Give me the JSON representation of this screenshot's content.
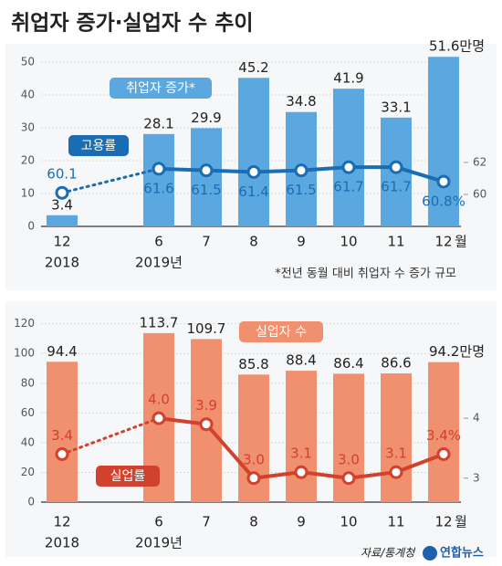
{
  "title": "취업자 증가·실업자 수 추이",
  "source": "자료/통계청",
  "logo": "연합뉴스",
  "chart_data": [
    {
      "type": "bar_line",
      "categories": [
        "12",
        "6",
        "7",
        "8",
        "9",
        "10",
        "11",
        "12"
      ],
      "year_labels": [
        "2018",
        "2019년"
      ],
      "x_unit": "월",
      "note": "*전년 동월 대비 취업자 수 증가 규모",
      "ylim": [
        0,
        55
      ],
      "yticks": [
        0,
        10,
        20,
        30,
        40,
        50
      ],
      "y2lim": [
        58,
        69.3
      ],
      "y2ticks": [
        60,
        62
      ],
      "grid": true,
      "dotted_first_segment": true,
      "series": [
        {
          "name": "취업자 증가*",
          "type": "bar",
          "color": "#5ba8e0",
          "values": [
            3.4,
            28.1,
            29.9,
            45.2,
            34.8,
            41.9,
            33.1,
            51.6
          ],
          "value_labels": [
            "3.4",
            "28.1",
            "29.9",
            "45.2",
            "34.8",
            "41.9",
            "33.1",
            "51.6만명"
          ]
        },
        {
          "name": "고용률",
          "type": "line",
          "axis": "y2",
          "color": "#1b6db3",
          "values": [
            60.1,
            61.6,
            61.5,
            61.4,
            61.5,
            61.7,
            61.7,
            60.8
          ],
          "value_labels": [
            "60.1",
            "61.6",
            "61.5",
            "61.4",
            "61.5",
            "61.7",
            "61.7",
            "60.8%"
          ]
        }
      ]
    },
    {
      "type": "bar_line",
      "categories": [
        "12",
        "6",
        "7",
        "8",
        "9",
        "10",
        "11",
        "12"
      ],
      "year_labels": [
        "2018",
        "2019년"
      ],
      "x_unit": "월",
      "ylim": [
        0,
        129
      ],
      "yticks": [
        0,
        20,
        40,
        60,
        80,
        100,
        120
      ],
      "y2lim": [
        2.6,
        5.8
      ],
      "y2ticks": [
        3,
        4
      ],
      "grid": true,
      "dotted_first_segment": true,
      "series": [
        {
          "name": "실업자 수",
          "type": "bar",
          "color": "#f0906e",
          "values": [
            94.4,
            113.7,
            109.7,
            85.8,
            88.4,
            86.4,
            86.6,
            94.2
          ],
          "value_labels": [
            "94.4",
            "113.7",
            "109.7",
            "85.8",
            "88.4",
            "86.4",
            "86.6",
            "94.2만명"
          ]
        },
        {
          "name": "실업률",
          "type": "line",
          "axis": "y2",
          "color": "#d2402e",
          "values": [
            3.4,
            4.0,
            3.9,
            3.0,
            3.1,
            3.0,
            3.1,
            3.4
          ],
          "value_labels": [
            "3.4",
            "4.0",
            "3.9",
            "3.0",
            "3.1",
            "3.0",
            "3.1",
            "3.4%"
          ]
        }
      ]
    }
  ]
}
